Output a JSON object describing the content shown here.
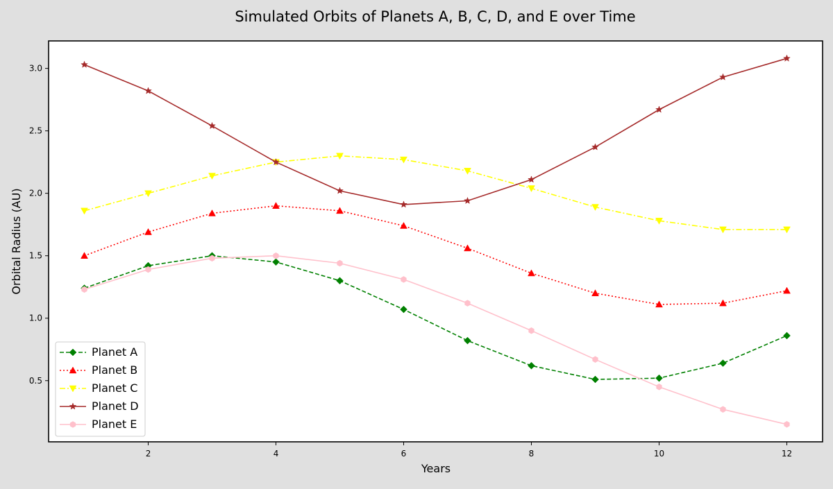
{
  "chart_data": {
    "type": "line",
    "title": "Simulated Orbits of Planets A, B, C, D, and E over Time",
    "xlabel": "Years",
    "ylabel": "Orbital Radius (AU)",
    "x": [
      1,
      2,
      3,
      4,
      5,
      6,
      7,
      8,
      9,
      10,
      11,
      12
    ],
    "xlim": [
      0.44,
      12.56
    ],
    "ylim": [
      0.01,
      3.22
    ],
    "xticks": [
      2,
      4,
      6,
      8,
      10,
      12
    ],
    "yticks": [
      0.5,
      1.0,
      1.5,
      2.0,
      2.5,
      3.0
    ],
    "grid": false,
    "legend_position": "lower-left",
    "series": [
      {
        "name": "Planet A",
        "color": "#008000",
        "line_style": "dashed",
        "marker": "diamond",
        "values": [
          1.24,
          1.42,
          1.5,
          1.45,
          1.3,
          1.07,
          0.82,
          0.62,
          0.51,
          0.52,
          0.64,
          0.86
        ]
      },
      {
        "name": "Planet B",
        "color": "#ff0000",
        "line_style": "dotted",
        "marker": "triangle-up",
        "values": [
          1.5,
          1.69,
          1.84,
          1.9,
          1.86,
          1.74,
          1.56,
          1.36,
          1.2,
          1.11,
          1.12,
          1.22
        ]
      },
      {
        "name": "Planet C",
        "color": "#ffff00",
        "line_style": "dashdot",
        "marker": "triangle-down",
        "values": [
          1.86,
          2.0,
          2.14,
          2.25,
          2.3,
          2.27,
          2.18,
          2.04,
          1.89,
          1.78,
          1.71,
          1.71
        ]
      },
      {
        "name": "Planet D",
        "color": "#a52a2a",
        "line_style": "solid",
        "marker": "star",
        "values": [
          3.03,
          2.82,
          2.54,
          2.25,
          2.02,
          1.91,
          1.94,
          2.11,
          2.37,
          2.67,
          2.93,
          3.08
        ]
      },
      {
        "name": "Planet E",
        "color": "#ffc0cb",
        "line_style": "solid",
        "marker": "hexagon",
        "values": [
          1.23,
          1.39,
          1.48,
          1.5,
          1.44,
          1.31,
          1.12,
          0.9,
          0.67,
          0.45,
          0.27,
          0.15
        ]
      }
    ]
  }
}
